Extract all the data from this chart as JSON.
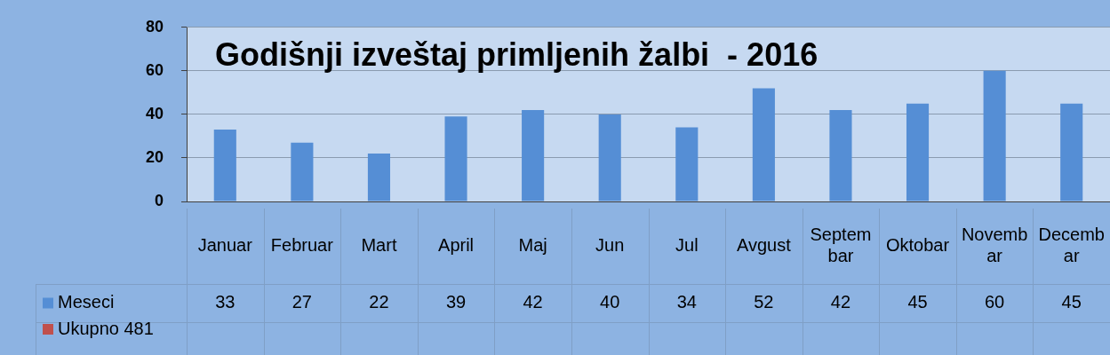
{
  "chart_data": {
    "type": "bar",
    "title": "Godišnji izveštaj primljenih žalbi  - 2016",
    "categories": [
      "Januar",
      "Februar",
      "Mart",
      "April",
      "Maj",
      "Jun",
      "Jul",
      "Avgust",
      "Septembar",
      "Oktobar",
      "Novembar",
      "Decembar"
    ],
    "series": [
      {
        "name": "Meseci",
        "color": "#558ed5",
        "values": [
          33,
          27,
          22,
          39,
          42,
          40,
          34,
          52,
          42,
          45,
          60,
          45
        ]
      },
      {
        "name": "Ukupno 481",
        "color": "#c0504d",
        "values": [
          null,
          null,
          null,
          null,
          null,
          null,
          null,
          null,
          null,
          null,
          null,
          null
        ]
      }
    ],
    "ylim": [
      0,
      80
    ],
    "yticks": [
      0,
      20,
      40,
      60,
      80
    ],
    "grid": "y",
    "legend": "bottom",
    "data_labels": true
  }
}
